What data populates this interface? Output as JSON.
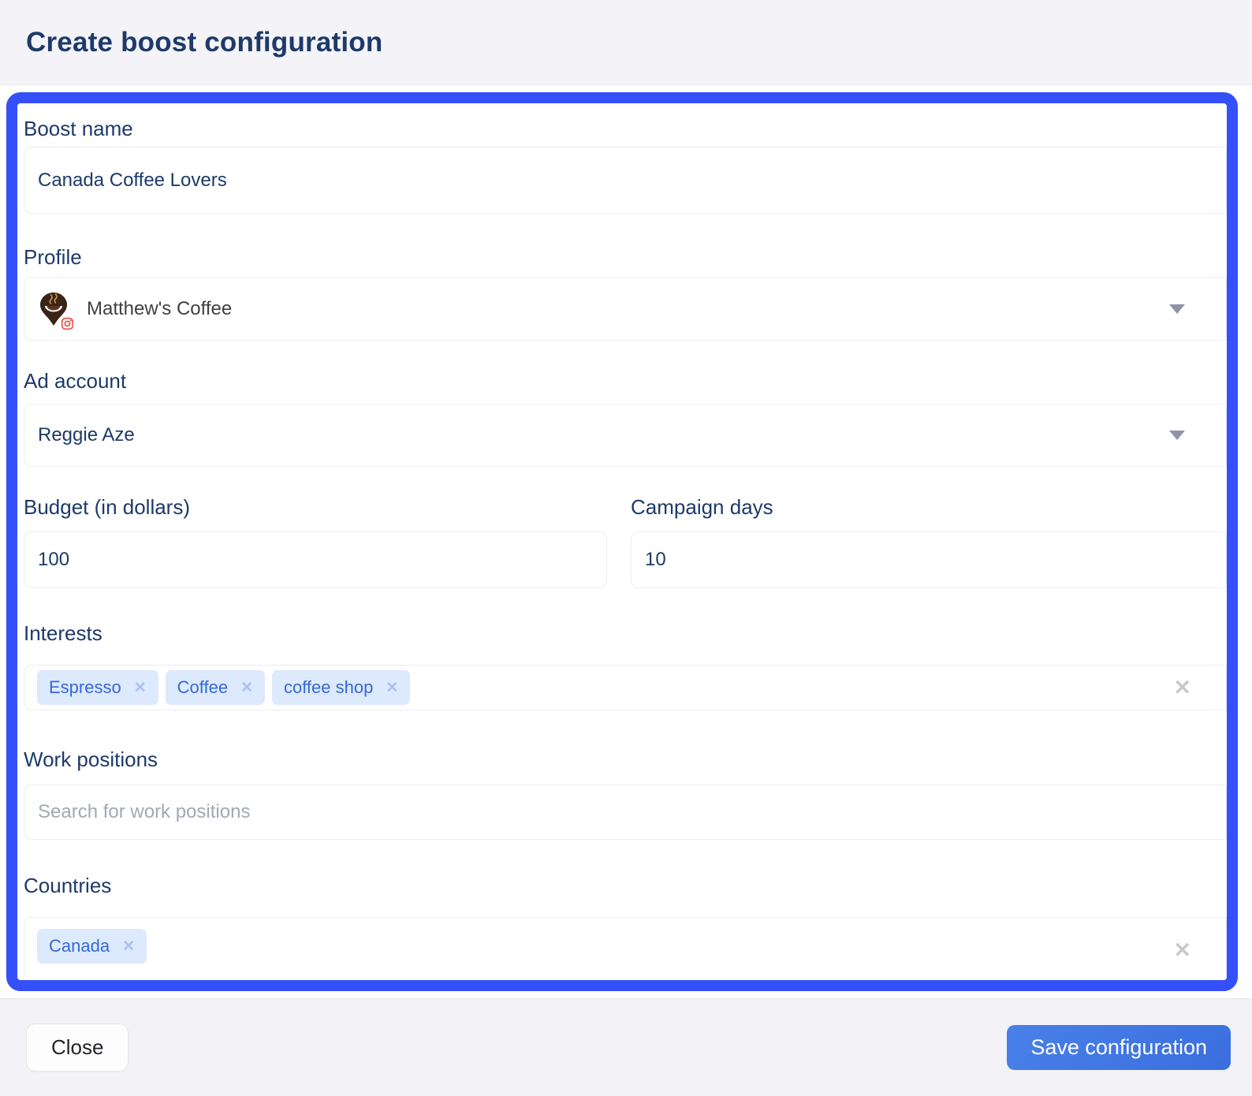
{
  "header": {
    "title": "Create boost configuration"
  },
  "form": {
    "boost_name": {
      "label": "Boost name",
      "value": "Canada Coffee Lovers"
    },
    "profile": {
      "label": "Profile",
      "value": "Matthew's Coffee",
      "avatar": "coffee-pin-logo-with-instagram-badge"
    },
    "ad_account": {
      "label": "Ad account",
      "value": "Reggie Aze"
    },
    "budget": {
      "label": "Budget (in dollars)",
      "value": "100"
    },
    "campaign_days": {
      "label": "Campaign days",
      "value": "10"
    },
    "interests": {
      "label": "Interests",
      "tags": [
        "Espresso",
        "Coffee",
        "coffee shop"
      ]
    },
    "work_positions": {
      "label": "Work positions",
      "placeholder": "Search for work positions"
    },
    "countries": {
      "label": "Countries",
      "tags": [
        "Canada"
      ]
    }
  },
  "footer": {
    "close_label": "Close",
    "save_label": "Save configuration"
  },
  "icons": {
    "dropdown_arrow": "chevron-down filled triangle",
    "remove_tag": "x",
    "clear_field": "x",
    "profile_avatar": "coffee cup in map pin with instagram camera badge"
  },
  "colors": {
    "frame_border": "#3450fa",
    "save_button": "#3c74e4",
    "label_text": "#1d3a69",
    "tag_background": "#dde9fc",
    "tag_text": "#3569d6",
    "header_background": "#f3f3f8"
  }
}
